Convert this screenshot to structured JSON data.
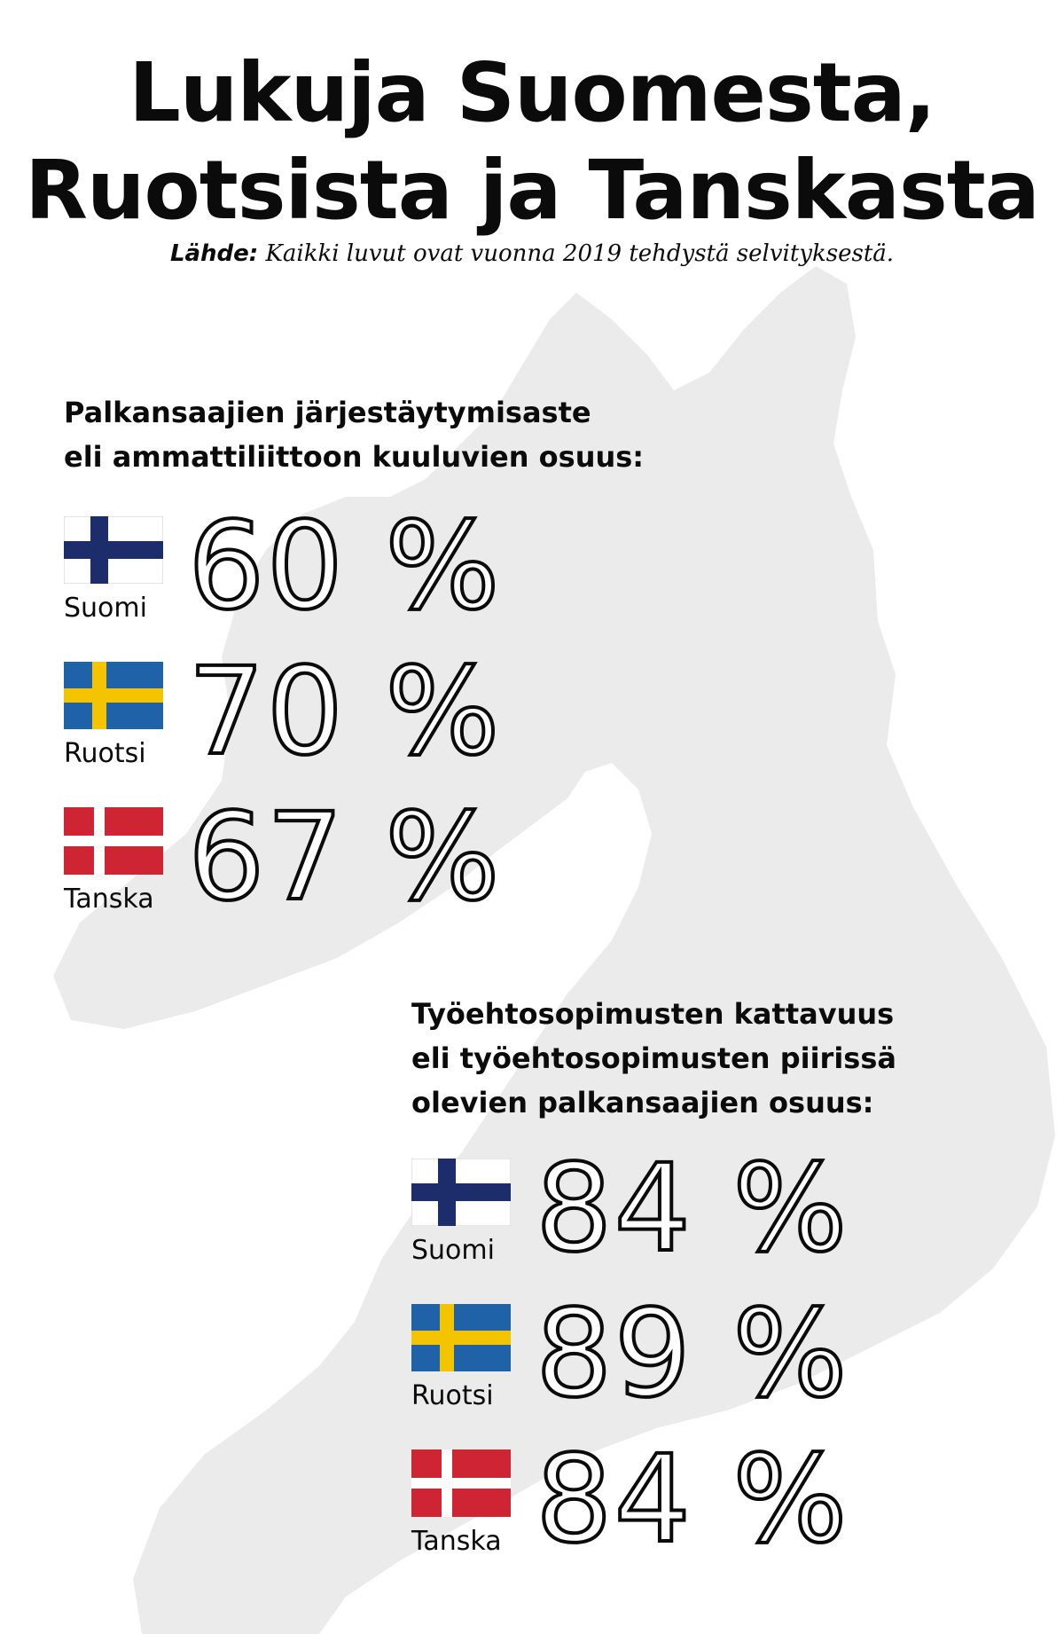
{
  "title": {
    "line1": "Lukuja Suomesta,",
    "line2": "Ruotsista ja Tanskasta"
  },
  "source": {
    "label": "Lähde:",
    "text": "Kaikki luvut ovat vuonna 2019 tehdystä selvityksestä."
  },
  "section_union": {
    "heading_line1": "Palkansaajien järjestäytymisaste",
    "heading_line2": "eli ammattiliittoon kuuluvien osuus:",
    "rows": [
      {
        "country": "Suomi",
        "value": "60 %",
        "flag": "finland-flag"
      },
      {
        "country": "Ruotsi",
        "value": "70 %",
        "flag": "sweden-flag"
      },
      {
        "country": "Tanska",
        "value": "67 %",
        "flag": "denmark-flag"
      }
    ]
  },
  "section_agreements": {
    "heading_line1": "Työehtosopimusten kattavuus",
    "heading_line2": "eli työehtosopimusten piirissä",
    "heading_line3": "olevien palkansaajien osuus:",
    "rows": [
      {
        "country": "Suomi",
        "value": "84 %",
        "flag": "finland-flag"
      },
      {
        "country": "Ruotsi",
        "value": "89 %",
        "flag": "sweden-flag"
      },
      {
        "country": "Tanska",
        "value": "84 %",
        "flag": "denmark-flag"
      }
    ]
  },
  "colors": {
    "map": "#ebebeb",
    "finland_blue": "#1d2d6b",
    "sweden_blue": "#1f62a8",
    "sweden_yellow": "#f5c400",
    "denmark_red": "#cf2434"
  }
}
